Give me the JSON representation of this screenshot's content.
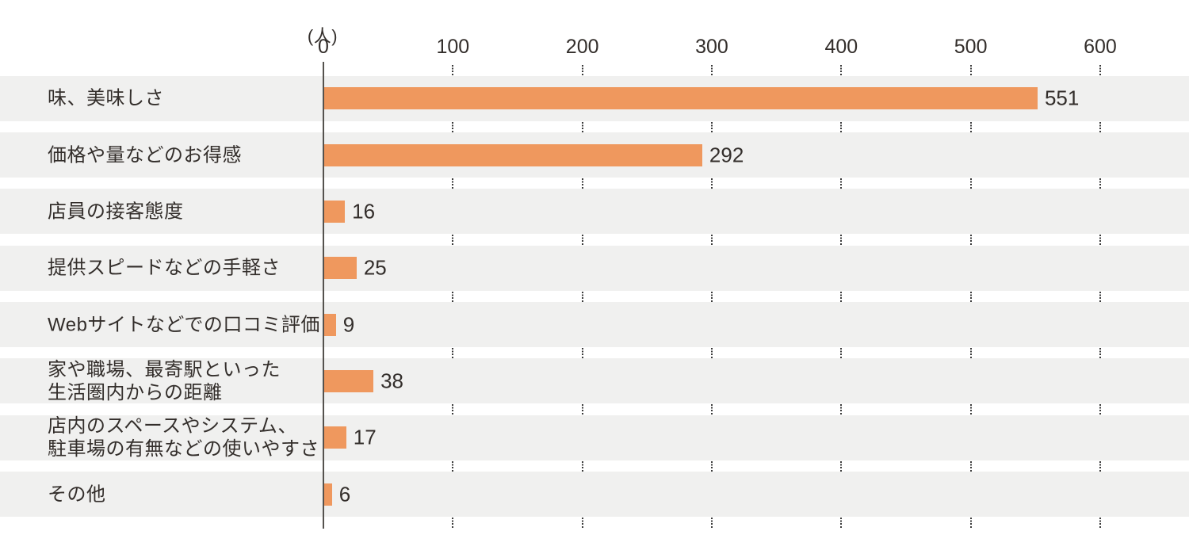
{
  "chart_data": {
    "type": "bar",
    "orientation": "horizontal",
    "title": "",
    "unit_label": "(人)",
    "categories": [
      "味、美味しさ",
      "価格や量などのお得感",
      "店員の接客態度",
      "提供スピードなどの手軽さ",
      "Webサイトなどでの口コミ評価",
      "家や職場、最寄駅といった\n生活圏内からの距離",
      "店内のスペースやシステム、\n駐車場の有無などの使いやすさ",
      "その他"
    ],
    "values": [
      551,
      292,
      16,
      25,
      9,
      38,
      17,
      6
    ],
    "value_labels": [
      "551",
      "292",
      "16",
      "25",
      "9",
      "38",
      "17",
      "6"
    ],
    "x_ticks": [
      0,
      100,
      200,
      300,
      400,
      500,
      600
    ],
    "xlim": [
      0,
      669
    ],
    "grid": "dotted-vertical-ticks-in-row-gaps",
    "legend": "none",
    "colors": {
      "bar": "#EF985E",
      "row_band": "#F0F0EF",
      "text": "#332E2B",
      "axis_line": "#55524E",
      "tick_dots": "#3B3B3B",
      "background": "#FFFFFF"
    }
  }
}
